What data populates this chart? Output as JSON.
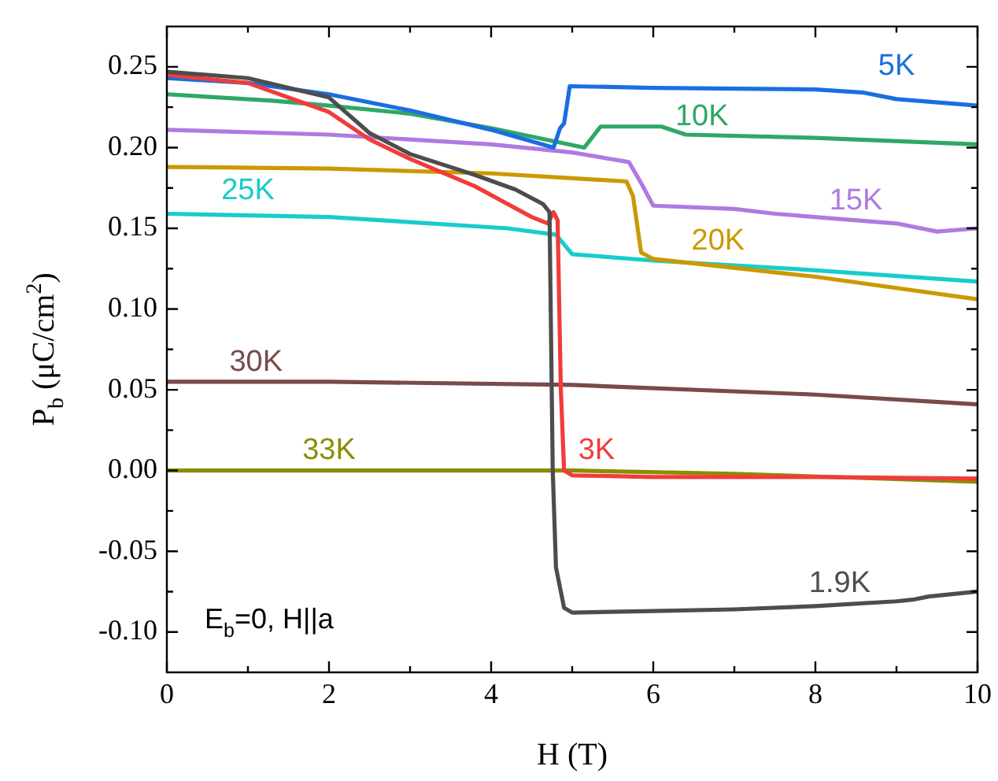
{
  "chart_data": {
    "type": "line",
    "xlabel": "H (T)",
    "ylabel": "P$_{b}$ (μC/cm$^{2}$)",
    "xlim": [
      0,
      10
    ],
    "xticks": [
      0,
      {
        "value": 1,
        "label": null
      },
      2,
      {
        "value": 3,
        "label": null
      },
      4,
      {
        "value": 5,
        "label": null
      },
      6,
      {
        "value": 7,
        "label": null
      },
      8,
      {
        "value": 9,
        "label": null
      },
      10
    ],
    "ylim": [
      -0.125,
      0.275
    ],
    "yticks": [
      {
        "value": -0.1,
        "label": "-0.10"
      },
      {
        "value": -0.075,
        "label": null
      },
      {
        "value": -0.05,
        "label": "-0.05"
      },
      {
        "value": -0.025,
        "label": null
      },
      {
        "value": 0,
        "label": "0.00"
      },
      {
        "value": 0.025,
        "label": null
      },
      {
        "value": 0.05,
        "label": "0.05"
      },
      {
        "value": 0.075,
        "label": null
      },
      {
        "value": 0.1,
        "label": "0.10"
      },
      {
        "value": 0.125,
        "label": null
      },
      {
        "value": 0.15,
        "label": "0.15"
      },
      {
        "value": 0.175,
        "label": null
      },
      {
        "value": 0.2,
        "label": "0.20"
      },
      {
        "value": 0.225,
        "label": null
      },
      {
        "value": 0.25,
        "label": "0.25"
      }
    ],
    "grid": false,
    "legend": false,
    "marker": "none",
    "line_style": "solid",
    "annotations": [
      "E$_{b}$=0, H||a"
    ],
    "series": [
      {
        "name": "1.9K",
        "color": "#4d4d4d",
        "x": [
          0,
          1,
          2,
          2.5,
          3,
          3.8,
          4.3,
          4.64,
          4.72,
          4.76,
          4.8,
          4.9,
          5,
          6,
          7,
          8,
          9,
          9.2,
          9.4,
          10
        ],
        "values": [
          0.247,
          0.243,
          0.231,
          0.209,
          0.196,
          0.183,
          0.174,
          0.165,
          0.16,
          0.0,
          -0.06,
          -0.085,
          -0.088,
          -0.087,
          -0.086,
          -0.084,
          -0.081,
          -0.08,
          -0.078,
          -0.075
        ]
      },
      {
        "name": "3K",
        "color": "#f03c3c",
        "x": [
          0,
          1,
          2,
          2.5,
          3,
          3.8,
          4.5,
          4.7,
          4.77,
          4.82,
          4.86,
          4.9,
          5,
          6,
          8,
          10
        ],
        "values": [
          0.245,
          0.24,
          0.222,
          0.205,
          0.193,
          0.176,
          0.157,
          0.153,
          0.16,
          0.155,
          0.05,
          0.0,
          -0.003,
          -0.004,
          -0.004,
          -0.005
        ]
      },
      {
        "name": "5K",
        "color": "#1a6ee0",
        "x": [
          0,
          1,
          2,
          3,
          4,
          4.77,
          4.85,
          4.9,
          4.97,
          6,
          8,
          8.6,
          9,
          10
        ],
        "values": [
          0.243,
          0.24,
          0.233,
          0.223,
          0.211,
          0.2,
          0.212,
          0.215,
          0.238,
          0.237,
          0.236,
          0.234,
          0.23,
          0.226
        ]
      },
      {
        "name": "10K",
        "color": "#2ea866",
        "x": [
          0,
          1.3,
          2,
          3,
          4,
          5.15,
          5.35,
          6.1,
          6.4,
          8,
          10
        ],
        "values": [
          0.233,
          0.229,
          0.226,
          0.221,
          0.212,
          0.2,
          0.213,
          0.213,
          0.208,
          0.206,
          0.202
        ]
      },
      {
        "name": "15K",
        "color": "#b07ae0",
        "x": [
          0,
          2,
          4,
          5,
          5.7,
          5.85,
          6,
          7,
          7.5,
          9,
          9.5,
          10
        ],
        "values": [
          0.211,
          0.208,
          0.202,
          0.197,
          0.191,
          0.178,
          0.164,
          0.162,
          0.159,
          0.153,
          0.148,
          0.15
        ]
      },
      {
        "name": "20K",
        "color": "#cc9900",
        "x": [
          0,
          2,
          4,
          5,
          5.67,
          5.75,
          5.85,
          6,
          8,
          10
        ],
        "values": [
          0.188,
          0.187,
          0.184,
          0.181,
          0.179,
          0.17,
          0.135,
          0.131,
          0.12,
          0.106
        ]
      },
      {
        "name": "25K",
        "color": "#18cccc",
        "x": [
          0,
          2,
          4.2,
          4.8,
          5,
          6,
          8,
          10
        ],
        "values": [
          0.159,
          0.157,
          0.15,
          0.146,
          0.134,
          0.13,
          0.124,
          0.117
        ]
      },
      {
        "name": "30K",
        "color": "#7a4a4a",
        "x": [
          0,
          2,
          5,
          8,
          10
        ],
        "values": [
          0.055,
          0.055,
          0.053,
          0.047,
          0.041
        ]
      },
      {
        "name": "33K",
        "color": "#8c8c00",
        "x": [
          0,
          5,
          7,
          10
        ],
        "values": [
          0,
          0,
          -0.002,
          -0.007
        ]
      }
    ]
  }
}
